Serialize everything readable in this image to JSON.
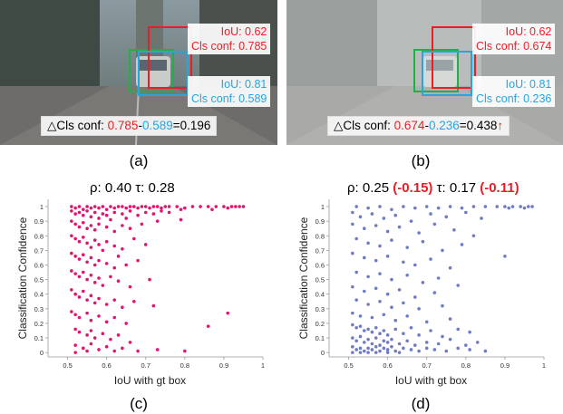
{
  "panels": {
    "a": {
      "caption": "(a)",
      "red_box": {
        "iou_text": "IoU: 0.62",
        "conf_text": "Cls conf: 0.785"
      },
      "blue_box": {
        "iou_text": "IoU: 0.81",
        "conf_text": "Cls conf: 0.589"
      },
      "delta": {
        "prefix": "△Cls conf: ",
        "v1": "0.785",
        "minus": "-",
        "v2": "0.589",
        "result": "=0.196",
        "arrow": ""
      }
    },
    "b": {
      "caption": "(b)",
      "red_box": {
        "iou_text": "IoU: 0.62",
        "conf_text": "Cls conf: 0.674"
      },
      "blue_box": {
        "iou_text": "IoU: 0.81",
        "conf_text": "Cls conf: 0.236"
      },
      "delta": {
        "prefix": "△Cls conf: ",
        "v1": "0.674",
        "minus": "-",
        "v2": "0.236",
        "result": "=0.438",
        "arrow": "↑"
      }
    },
    "c": {
      "caption": "(c)",
      "title": {
        "rho_label": "ρ: 0.40 ",
        "tau_label": "τ: 0.28",
        "rho_delta": "",
        "tau_delta": ""
      }
    },
    "d": {
      "caption": "(d)",
      "title": {
        "rho_label": "ρ: 0.25 ",
        "rho_delta": "(-0.15)",
        "tau_label": " τ: 0.17 ",
        "tau_delta": "(-0.11)"
      }
    }
  },
  "colors": {
    "box_red": "#ee1c25",
    "box_green": "#1fb04a",
    "box_blue": "#24a6e0",
    "scatter_c": "#e0156e",
    "scatter_d": "#6f7cc4"
  },
  "chart_data": [
    {
      "type": "scatter",
      "title": "ρ: 0.40 τ: 0.28",
      "xlabel": "IoU with gt box",
      "ylabel": "Classification Confidence",
      "xlim": [
        0.45,
        1.0
      ],
      "ylim": [
        -0.03,
        1.05
      ],
      "xticks": [
        "0.5",
        "0.6",
        "0.7",
        "0.8",
        "0.9",
        "1"
      ],
      "yticks": [
        "0",
        "0.1",
        "0.2",
        "0.3",
        "0.4",
        "0.5",
        "0.6",
        "0.7",
        "0.8",
        "0.9",
        "1"
      ],
      "color": "#e0156e",
      "points": [
        [
          0.51,
          1.0
        ],
        [
          0.52,
          0.99
        ],
        [
          0.53,
          1.0
        ],
        [
          0.54,
          0.98
        ],
        [
          0.55,
          1.0
        ],
        [
          0.56,
          0.99
        ],
        [
          0.57,
          1.0
        ],
        [
          0.58,
          0.99
        ],
        [
          0.59,
          1.0
        ],
        [
          0.6,
          0.98
        ],
        [
          0.61,
          1.0
        ],
        [
          0.62,
          0.99
        ],
        [
          0.63,
          1.0
        ],
        [
          0.64,
          1.0
        ],
        [
          0.65,
          0.99
        ],
        [
          0.66,
          1.0
        ],
        [
          0.67,
          1.0
        ],
        [
          0.68,
          0.99
        ],
        [
          0.69,
          1.0
        ],
        [
          0.7,
          1.0
        ],
        [
          0.71,
          0.99
        ],
        [
          0.72,
          1.0
        ],
        [
          0.73,
          1.0
        ],
        [
          0.74,
          0.99
        ],
        [
          0.75,
          1.0
        ],
        [
          0.76,
          1.0
        ],
        [
          0.78,
          1.0
        ],
        [
          0.8,
          0.99
        ],
        [
          0.82,
          1.0
        ],
        [
          0.84,
          1.0
        ],
        [
          0.86,
          1.0
        ],
        [
          0.88,
          1.0
        ],
        [
          0.9,
          1.0
        ],
        [
          0.92,
          1.0
        ],
        [
          0.94,
          1.0
        ],
        [
          0.95,
          1.0
        ],
        [
          0.93,
          1.0
        ],
        [
          0.91,
          0.99
        ],
        [
          0.87,
          0.98
        ],
        [
          0.79,
          0.98
        ],
        [
          0.51,
          0.97
        ],
        [
          0.52,
          0.95
        ],
        [
          0.53,
          0.96
        ],
        [
          0.54,
          0.94
        ],
        [
          0.55,
          0.97
        ],
        [
          0.56,
          0.93
        ],
        [
          0.57,
          0.96
        ],
        [
          0.58,
          0.92
        ],
        [
          0.59,
          0.95
        ],
        [
          0.6,
          0.94
        ],
        [
          0.62,
          0.96
        ],
        [
          0.64,
          0.95
        ],
        [
          0.66,
          0.97
        ],
        [
          0.68,
          0.94
        ],
        [
          0.7,
          0.96
        ],
        [
          0.72,
          0.95
        ],
        [
          0.74,
          0.97
        ],
        [
          0.76,
          0.96
        ],
        [
          0.65,
          0.92
        ],
        [
          0.61,
          0.91
        ],
        [
          0.51,
          0.9
        ],
        [
          0.52,
          0.88
        ],
        [
          0.53,
          0.86
        ],
        [
          0.54,
          0.89
        ],
        [
          0.55,
          0.85
        ],
        [
          0.56,
          0.87
        ],
        [
          0.57,
          0.84
        ],
        [
          0.58,
          0.88
        ],
        [
          0.6,
          0.86
        ],
        [
          0.62,
          0.83
        ],
        [
          0.64,
          0.87
        ],
        [
          0.66,
          0.85
        ],
        [
          0.69,
          0.88
        ],
        [
          0.73,
          0.9
        ],
        [
          0.79,
          0.91
        ],
        [
          0.51,
          0.8
        ],
        [
          0.52,
          0.78
        ],
        [
          0.53,
          0.76
        ],
        [
          0.54,
          0.79
        ],
        [
          0.55,
          0.75
        ],
        [
          0.56,
          0.72
        ],
        [
          0.57,
          0.77
        ],
        [
          0.58,
          0.74
        ],
        [
          0.59,
          0.7
        ],
        [
          0.6,
          0.76
        ],
        [
          0.62,
          0.73
        ],
        [
          0.64,
          0.71
        ],
        [
          0.67,
          0.78
        ],
        [
          0.7,
          0.74
        ],
        [
          0.51,
          0.68
        ],
        [
          0.52,
          0.66
        ],
        [
          0.53,
          0.64
        ],
        [
          0.54,
          0.67
        ],
        [
          0.55,
          0.62
        ],
        [
          0.56,
          0.65
        ],
        [
          0.57,
          0.6
        ],
        [
          0.58,
          0.63
        ],
        [
          0.6,
          0.61
        ],
        [
          0.62,
          0.58
        ],
        [
          0.63,
          0.66
        ],
        [
          0.65,
          0.6
        ],
        [
          0.68,
          0.63
        ],
        [
          0.51,
          0.56
        ],
        [
          0.52,
          0.54
        ],
        [
          0.53,
          0.52
        ],
        [
          0.54,
          0.55
        ],
        [
          0.55,
          0.5
        ],
        [
          0.56,
          0.53
        ],
        [
          0.57,
          0.48
        ],
        [
          0.58,
          0.51
        ],
        [
          0.59,
          0.46
        ],
        [
          0.61,
          0.52
        ],
        [
          0.63,
          0.49
        ],
        [
          0.66,
          0.45
        ],
        [
          0.71,
          0.5
        ],
        [
          0.51,
          0.43
        ],
        [
          0.52,
          0.4
        ],
        [
          0.53,
          0.38
        ],
        [
          0.54,
          0.42
        ],
        [
          0.55,
          0.36
        ],
        [
          0.56,
          0.39
        ],
        [
          0.57,
          0.34
        ],
        [
          0.58,
          0.37
        ],
        [
          0.6,
          0.33
        ],
        [
          0.62,
          0.36
        ],
        [
          0.64,
          0.31
        ],
        [
          0.67,
          0.35
        ],
        [
          0.72,
          0.32
        ],
        [
          0.51,
          0.28
        ],
        [
          0.52,
          0.26
        ],
        [
          0.53,
          0.24
        ],
        [
          0.55,
          0.27
        ],
        [
          0.56,
          0.22
        ],
        [
          0.58,
          0.25
        ],
        [
          0.6,
          0.21
        ],
        [
          0.62,
          0.24
        ],
        [
          0.65,
          0.2
        ],
        [
          0.91,
          0.27
        ],
        [
          0.86,
          0.18
        ],
        [
          0.52,
          0.16
        ],
        [
          0.53,
          0.14
        ],
        [
          0.55,
          0.12
        ],
        [
          0.56,
          0.15
        ],
        [
          0.57,
          0.1
        ],
        [
          0.59,
          0.13
        ],
        [
          0.61,
          0.09
        ],
        [
          0.63,
          0.12
        ],
        [
          0.66,
          0.07
        ],
        [
          0.52,
          0.05
        ],
        [
          0.54,
          0.03
        ],
        [
          0.56,
          0.06
        ],
        [
          0.58,
          0.02
        ],
        [
          0.6,
          0.04
        ],
        [
          0.62,
          0.01
        ],
        [
          0.64,
          0.03
        ],
        [
          0.68,
          0.01
        ],
        [
          0.73,
          0.02
        ],
        [
          0.8,
          0.01
        ],
        [
          0.55,
          0.01
        ],
        [
          0.52,
          0.0
        ]
      ]
    },
    {
      "type": "scatter",
      "title": "ρ: 0.25 (-0.15) τ: 0.17 (-0.11)",
      "xlabel": "IoU with gt box",
      "ylabel": "Classification Confidence",
      "xlim": [
        0.45,
        1.0
      ],
      "ylim": [
        -0.03,
        1.05
      ],
      "xticks": [
        "0.5",
        "0.6",
        "0.7",
        "0.8",
        "0.9",
        "1"
      ],
      "yticks": [
        "0",
        "0.1",
        "0.2",
        "0.3",
        "0.4",
        "0.5",
        "0.6",
        "0.7",
        "0.8",
        "0.9",
        "1"
      ],
      "color": "#6f7cc4",
      "points": [
        [
          0.52,
          1.0
        ],
        [
          0.55,
          0.99
        ],
        [
          0.58,
          1.0
        ],
        [
          0.61,
          0.98
        ],
        [
          0.64,
          1.0
        ],
        [
          0.67,
          0.99
        ],
        [
          0.7,
          1.0
        ],
        [
          0.73,
          0.99
        ],
        [
          0.76,
          1.0
        ],
        [
          0.79,
          0.99
        ],
        [
          0.82,
          1.0
        ],
        [
          0.85,
          1.0
        ],
        [
          0.88,
          1.0
        ],
        [
          0.9,
          1.0
        ],
        [
          0.92,
          1.0
        ],
        [
          0.94,
          1.0
        ],
        [
          0.96,
          1.0
        ],
        [
          0.97,
          1.0
        ],
        [
          0.95,
          0.99
        ],
        [
          0.91,
          0.99
        ],
        [
          0.51,
          0.96
        ],
        [
          0.53,
          0.93
        ],
        [
          0.56,
          0.95
        ],
        [
          0.59,
          0.92
        ],
        [
          0.62,
          0.94
        ],
        [
          0.66,
          0.9
        ],
        [
          0.71,
          0.95
        ],
        [
          0.75,
          0.93
        ],
        [
          0.8,
          0.96
        ],
        [
          0.84,
          0.92
        ],
        [
          0.51,
          0.88
        ],
        [
          0.54,
          0.85
        ],
        [
          0.57,
          0.87
        ],
        [
          0.6,
          0.83
        ],
        [
          0.63,
          0.86
        ],
        [
          0.68,
          0.82
        ],
        [
          0.72,
          0.88
        ],
        [
          0.77,
          0.84
        ],
        [
          0.9,
          0.66
        ],
        [
          0.82,
          0.8
        ],
        [
          0.52,
          0.78
        ],
        [
          0.55,
          0.75
        ],
        [
          0.58,
          0.73
        ],
        [
          0.61,
          0.77
        ],
        [
          0.65,
          0.72
        ],
        [
          0.69,
          0.76
        ],
        [
          0.74,
          0.7
        ],
        [
          0.79,
          0.74
        ],
        [
          0.51,
          0.68
        ],
        [
          0.54,
          0.65
        ],
        [
          0.57,
          0.63
        ],
        [
          0.6,
          0.66
        ],
        [
          0.64,
          0.62
        ],
        [
          0.67,
          0.6
        ],
        [
          0.71,
          0.64
        ],
        [
          0.76,
          0.58
        ],
        [
          0.52,
          0.55
        ],
        [
          0.55,
          0.52
        ],
        [
          0.58,
          0.54
        ],
        [
          0.61,
          0.5
        ],
        [
          0.65,
          0.53
        ],
        [
          0.69,
          0.48
        ],
        [
          0.73,
          0.51
        ],
        [
          0.78,
          0.46
        ],
        [
          0.51,
          0.45
        ],
        [
          0.54,
          0.42
        ],
        [
          0.57,
          0.44
        ],
        [
          0.6,
          0.4
        ],
        [
          0.63,
          0.43
        ],
        [
          0.67,
          0.38
        ],
        [
          0.72,
          0.41
        ],
        [
          0.52,
          0.36
        ],
        [
          0.55,
          0.33
        ],
        [
          0.58,
          0.35
        ],
        [
          0.61,
          0.31
        ],
        [
          0.64,
          0.34
        ],
        [
          0.68,
          0.3
        ],
        [
          0.74,
          0.32
        ],
        [
          0.51,
          0.27
        ],
        [
          0.53,
          0.25
        ],
        [
          0.56,
          0.24
        ],
        [
          0.59,
          0.26
        ],
        [
          0.62,
          0.22
        ],
        [
          0.65,
          0.25
        ],
        [
          0.7,
          0.21
        ],
        [
          0.76,
          0.23
        ],
        [
          0.51,
          0.19
        ],
        [
          0.52,
          0.17
        ],
        [
          0.53,
          0.18
        ],
        [
          0.54,
          0.15
        ],
        [
          0.55,
          0.16
        ],
        [
          0.56,
          0.14
        ],
        [
          0.57,
          0.17
        ],
        [
          0.58,
          0.13
        ],
        [
          0.59,
          0.15
        ],
        [
          0.6,
          0.12
        ],
        [
          0.62,
          0.16
        ],
        [
          0.64,
          0.13
        ],
        [
          0.66,
          0.17
        ],
        [
          0.68,
          0.12
        ],
        [
          0.71,
          0.15
        ],
        [
          0.74,
          0.11
        ],
        [
          0.78,
          0.16
        ],
        [
          0.81,
          0.14
        ],
        [
          0.51,
          0.1
        ],
        [
          0.52,
          0.08
        ],
        [
          0.53,
          0.11
        ],
        [
          0.54,
          0.07
        ],
        [
          0.55,
          0.09
        ],
        [
          0.56,
          0.06
        ],
        [
          0.57,
          0.1
        ],
        [
          0.58,
          0.05
        ],
        [
          0.59,
          0.08
        ],
        [
          0.6,
          0.07
        ],
        [
          0.61,
          0.09
        ],
        [
          0.63,
          0.06
        ],
        [
          0.65,
          0.08
        ],
        [
          0.67,
          0.05
        ],
        [
          0.7,
          0.07
        ],
        [
          0.73,
          0.06
        ],
        [
          0.76,
          0.09
        ],
        [
          0.8,
          0.05
        ],
        [
          0.83,
          0.07
        ],
        [
          0.51,
          0.04
        ],
        [
          0.52,
          0.02
        ],
        [
          0.53,
          0.03
        ],
        [
          0.54,
          0.01
        ],
        [
          0.55,
          0.03
        ],
        [
          0.56,
          0.02
        ],
        [
          0.57,
          0.04
        ],
        [
          0.58,
          0.01
        ],
        [
          0.59,
          0.03
        ],
        [
          0.6,
          0.02
        ],
        [
          0.61,
          0.04
        ],
        [
          0.62,
          0.01
        ],
        [
          0.64,
          0.03
        ],
        [
          0.66,
          0.02
        ],
        [
          0.68,
          0.01
        ],
        [
          0.7,
          0.03
        ],
        [
          0.72,
          0.02
        ],
        [
          0.75,
          0.01
        ],
        [
          0.78,
          0.03
        ],
        [
          0.81,
          0.02
        ],
        [
          0.85,
          0.01
        ],
        [
          0.51,
          0.0
        ],
        [
          0.53,
          0.0
        ],
        [
          0.55,
          0.0
        ],
        [
          0.57,
          0.0
        ],
        [
          0.6,
          0.0
        ],
        [
          0.63,
          0.0
        ]
      ]
    }
  ]
}
